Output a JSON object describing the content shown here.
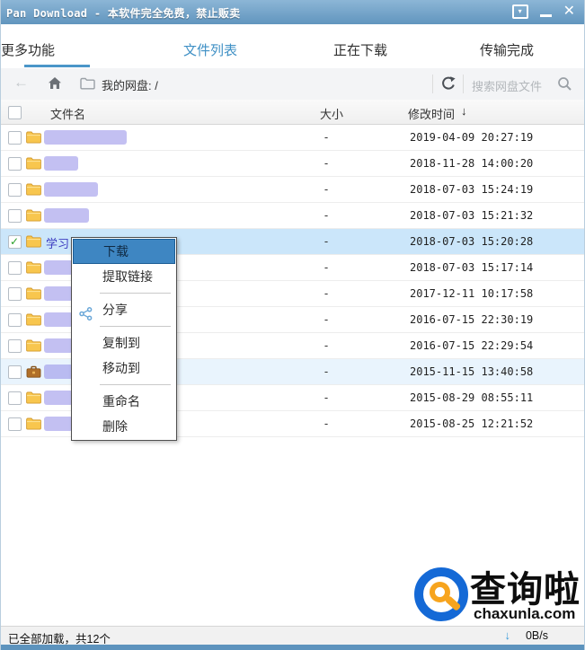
{
  "window": {
    "title": "Pan Download - 本软件完全免费，禁止贩卖"
  },
  "titlebar_icons": {
    "tray_icon": "▾",
    "minimize_icon": "—",
    "close_icon": "✕"
  },
  "tabs": [
    {
      "label": "文件列表",
      "active": true
    },
    {
      "label": "正在下载",
      "active": false
    },
    {
      "label": "传输完成",
      "active": false
    },
    {
      "label": "更多功能",
      "active": false
    }
  ],
  "toolbar": {
    "back_icon": "←",
    "home_icon": "home",
    "new_folder_icon": "folder-outline",
    "breadcrumb": "我的网盘: /",
    "refresh_icon": "refresh",
    "search_placeholder": "搜索网盘文件",
    "search_icon": "magnifier"
  },
  "table": {
    "headers": {
      "name": "文件名",
      "size": "大小",
      "modified": "修改时间",
      "sort_icon": "↓"
    }
  },
  "rows": [
    {
      "icon": "folder",
      "name": "",
      "blur": 92,
      "size": "-",
      "modified": "2019-04-09 20:27:19",
      "checked": false,
      "state": "normal"
    },
    {
      "icon": "folder",
      "name": "",
      "blur": 38,
      "size": "-",
      "modified": "2018-11-28 14:00:20",
      "checked": false,
      "state": "normal"
    },
    {
      "icon": "folder",
      "name": "",
      "blur": 60,
      "size": "-",
      "modified": "2018-07-03 15:24:19",
      "checked": false,
      "state": "normal"
    },
    {
      "icon": "folder",
      "name": "",
      "blur": 50,
      "size": "-",
      "modified": "2018-07-03 15:21:32",
      "checked": false,
      "state": "normal"
    },
    {
      "icon": "folder",
      "name": "学习",
      "blur": 0,
      "size": "-",
      "modified": "2018-07-03 15:20:28",
      "checked": true,
      "state": "selected"
    },
    {
      "icon": "folder",
      "name": "",
      "blur": 32,
      "size": "-",
      "modified": "2018-07-03 15:17:14",
      "checked": false,
      "state": "normal"
    },
    {
      "icon": "folder",
      "name": "",
      "blur": 32,
      "size": "-",
      "modified": "2017-12-11 10:17:58",
      "checked": false,
      "state": "normal"
    },
    {
      "icon": "folder",
      "name": "",
      "blur": 32,
      "size": "-",
      "modified": "2016-07-15 22:30:19",
      "checked": false,
      "state": "normal"
    },
    {
      "icon": "folder",
      "name": "",
      "blur": 32,
      "size": "-",
      "modified": "2016-07-15 22:29:54",
      "checked": false,
      "state": "normal"
    },
    {
      "icon": "briefcase",
      "name": "",
      "blur": 32,
      "size": "-",
      "modified": "2015-11-15 13:40:58",
      "checked": false,
      "state": "hover"
    },
    {
      "icon": "folder",
      "name": "",
      "blur": 32,
      "size": "-",
      "modified": "2015-08-29 08:55:11",
      "checked": false,
      "state": "normal"
    },
    {
      "icon": "folder",
      "name": "",
      "blur": 32,
      "size": "-",
      "modified": "2015-08-25 12:21:52",
      "checked": false,
      "state": "normal"
    }
  ],
  "context_menu": {
    "items": [
      {
        "type": "item",
        "label": "下载",
        "highlighted": true
      },
      {
        "type": "item",
        "label": "提取链接"
      },
      {
        "type": "separator"
      },
      {
        "type": "item",
        "label": "分享",
        "icon": "share"
      },
      {
        "type": "separator"
      },
      {
        "type": "item",
        "label": "复制到"
      },
      {
        "type": "item",
        "label": "移动到"
      },
      {
        "type": "separator"
      },
      {
        "type": "item",
        "label": "重命名"
      },
      {
        "type": "item",
        "label": "删除"
      }
    ]
  },
  "status_bar": {
    "loaded_text": "已全部加载，共12个",
    "download_icon": "↓",
    "speed": "0B/s"
  },
  "watermark": {
    "brand": "查询啦",
    "domain": "chaxunla.com"
  },
  "colors": {
    "accent": "#4b96c9",
    "titlebar_top": "#8cb6d6",
    "titlebar_bottom": "#6195be",
    "selected_row": "#cbe6fa",
    "hover_row": "#e9f4fd",
    "menu_highlight": "#3e86c2",
    "blur": "#928ce8",
    "bottom_strip": "#5d93bd",
    "watermark_blue": "#1469d6",
    "watermark_orange": "#f7a41d"
  }
}
